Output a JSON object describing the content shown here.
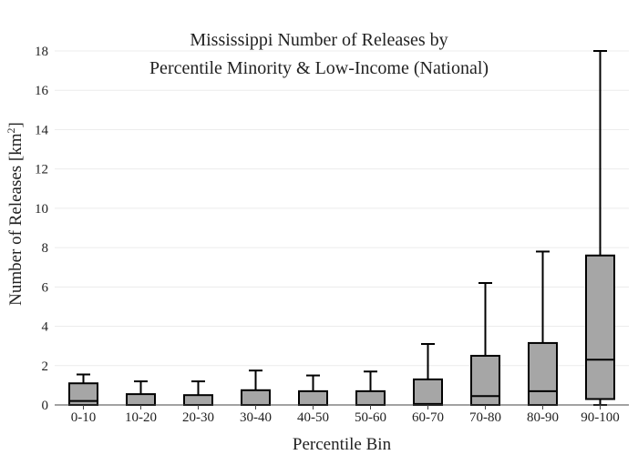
{
  "chart_data": {
    "type": "box",
    "title_lines": [
      "Mississippi Number of Releases by",
      "Percentile Minority & Low-Income (National)"
    ],
    "xlabel": "Percentile Bin",
    "ylabel_main": "Number of Releases  [km",
    "ylabel_sup": "2",
    "ylabel_end": "]",
    "ylim": [
      0,
      18
    ],
    "y_ticks": [
      0,
      2,
      4,
      6,
      8,
      10,
      12,
      14,
      16,
      18
    ],
    "grid": true,
    "box_color": "#a6a6a6",
    "categories": [
      "0-10",
      "10-20",
      "20-30",
      "30-40",
      "40-50",
      "50-60",
      "60-70",
      "70-80",
      "80-90",
      "90-100"
    ],
    "boxes": [
      {
        "low": 0,
        "q1": 0,
        "median": 0.2,
        "q3": 1.1,
        "high": 1.55
      },
      {
        "low": 0,
        "q1": 0,
        "median": 0,
        "q3": 0.55,
        "high": 1.2
      },
      {
        "low": 0,
        "q1": 0,
        "median": 0,
        "q3": 0.5,
        "high": 1.2
      },
      {
        "low": 0,
        "q1": 0,
        "median": 0,
        "q3": 0.75,
        "high": 1.75
      },
      {
        "low": 0,
        "q1": 0,
        "median": 0,
        "q3": 0.7,
        "high": 1.5
      },
      {
        "low": 0,
        "q1": 0,
        "median": 0,
        "q3": 0.7,
        "high": 1.7
      },
      {
        "low": 0,
        "q1": 0,
        "median": 0.05,
        "q3": 1.3,
        "high": 3.1
      },
      {
        "low": 0,
        "q1": 0,
        "median": 0.45,
        "q3": 2.5,
        "high": 6.2
      },
      {
        "low": 0,
        "q1": 0,
        "median": 0.7,
        "q3": 3.15,
        "high": 7.8
      },
      {
        "low": 0,
        "q1": 0.3,
        "median": 2.3,
        "q3": 7.6,
        "high": 18
      }
    ]
  }
}
